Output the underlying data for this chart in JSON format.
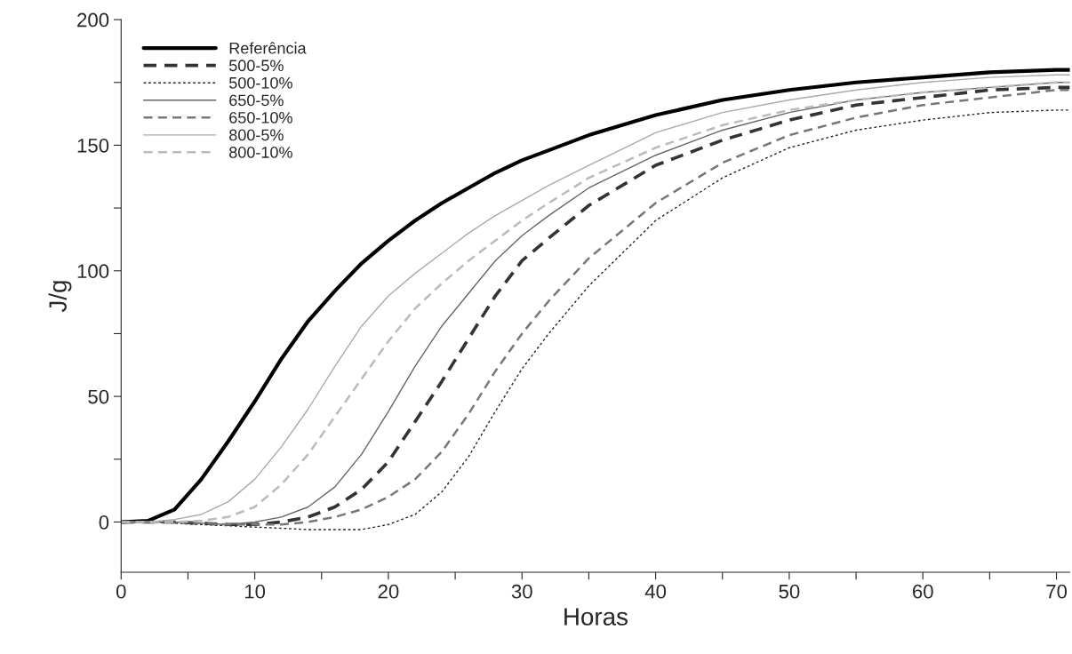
{
  "chart_data": {
    "type": "line",
    "xlabel": "Horas",
    "ylabel": "J/g",
    "x": [
      0,
      2,
      4,
      6,
      8,
      10,
      12,
      14,
      16,
      18,
      20,
      22,
      24,
      26,
      28,
      30,
      32,
      35,
      40,
      45,
      50,
      55,
      60,
      65,
      70,
      71
    ],
    "xlim": [
      0,
      71
    ],
    "ylim": [
      -20,
      200
    ],
    "xticks": [
      0,
      {
        "value": 5,
        "label": null
      },
      10,
      {
        "value": 15,
        "label": null
      },
      20,
      {
        "value": 25,
        "label": null
      },
      30,
      {
        "value": 35,
        "label": null
      },
      40,
      {
        "value": 45,
        "label": null
      },
      50,
      {
        "value": 55,
        "label": null
      },
      60,
      {
        "value": 65,
        "label": null
      },
      70
    ],
    "yticks": [
      0,
      {
        "value": 25,
        "label": null
      },
      50,
      {
        "value": 75,
        "label": null
      },
      100,
      {
        "value": 125,
        "label": null
      },
      150,
      {
        "value": 175,
        "label": null
      },
      200
    ],
    "legend": "top left",
    "grid": false,
    "marker": "none",
    "series": [
      {
        "name": "Referência",
        "color": "#000000",
        "line_style": "solid",
        "values": [
          0,
          0.5,
          5,
          17,
          32,
          48,
          65,
          80,
          92,
          103,
          112,
          120,
          127,
          133,
          139,
          144,
          148,
          154,
          162,
          168,
          172,
          175,
          177,
          179,
          180,
          180
        ]
      },
      {
        "name": "500-5%",
        "color": "#333333",
        "line_style": "dashed",
        "values": [
          0,
          0,
          0,
          -0.5,
          -1,
          -1,
          0,
          2,
          6,
          13,
          24,
          40,
          56,
          73,
          90,
          104,
          113,
          126,
          142,
          152,
          160,
          166,
          169,
          172,
          173,
          173
        ]
      },
      {
        "name": "500-10%",
        "color": "#222222",
        "line_style": "dotted",
        "values": [
          0,
          0,
          -0.5,
          -1,
          -1.5,
          -2,
          -2.5,
          -3,
          -3,
          -3,
          -1,
          3,
          12,
          26,
          44,
          61,
          75,
          94,
          120,
          137,
          149,
          156,
          160,
          163,
          164,
          164
        ]
      },
      {
        "name": "650-5%",
        "color": "#666666",
        "line_style": "solid",
        "values": [
          0,
          0,
          0,
          -0.5,
          -1,
          0,
          2,
          6,
          14,
          27,
          44,
          62,
          78,
          91,
          104,
          114,
          122,
          133,
          146,
          156,
          163,
          168,
          171,
          173,
          175,
          175
        ]
      },
      {
        "name": "650-10%",
        "color": "#777777",
        "line_style": "dashed",
        "values": [
          0,
          0,
          0,
          -0.5,
          -1,
          -1,
          -1,
          0,
          2,
          5,
          10,
          17,
          28,
          43,
          60,
          75,
          88,
          105,
          127,
          143,
          154,
          161,
          166,
          169,
          172,
          172
        ]
      },
      {
        "name": "800-5%",
        "color": "#aaaaaa",
        "line_style": "solid",
        "values": [
          0,
          0,
          1,
          3,
          8,
          17,
          30,
          45,
          62,
          78,
          90,
          99,
          107,
          115,
          122,
          128,
          134,
          142,
          155,
          163,
          168,
          172,
          175,
          177,
          178,
          178
        ]
      },
      {
        "name": "800-10%",
        "color": "#bbbbbb",
        "line_style": "dashed",
        "values": [
          0,
          0,
          0,
          0.5,
          2,
          6,
          15,
          27,
          42,
          57,
          72,
          85,
          95,
          104,
          112,
          120,
          127,
          137,
          149,
          158,
          164,
          168,
          171,
          173,
          175,
          175
        ]
      }
    ]
  }
}
